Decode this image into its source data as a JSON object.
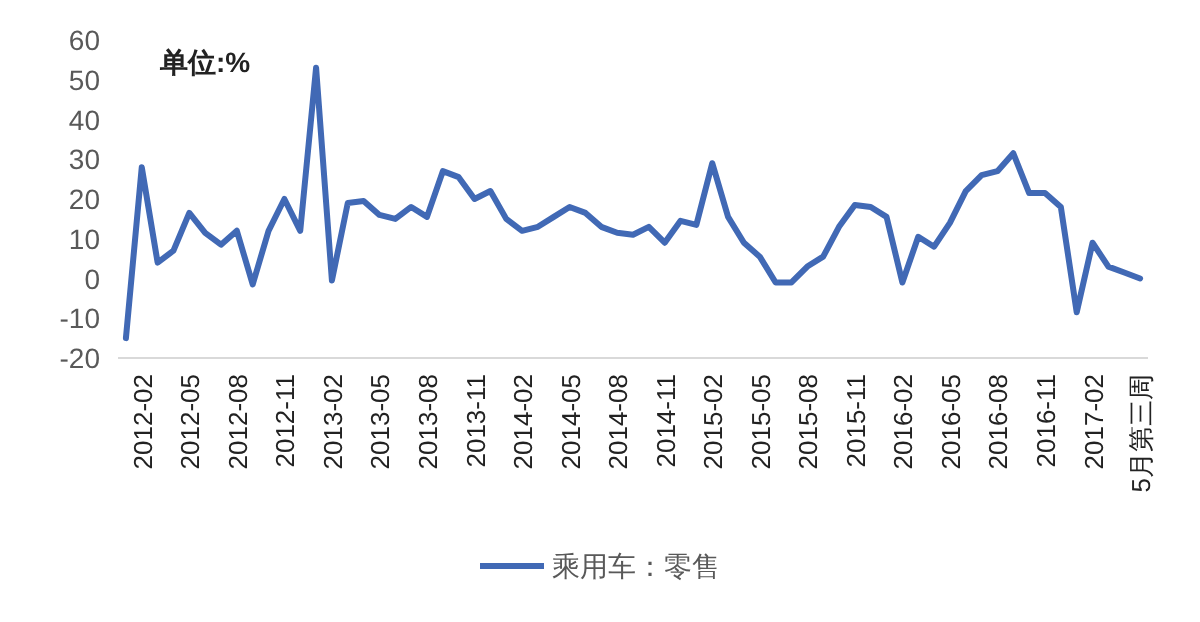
{
  "chart_data": {
    "type": "line",
    "ylabel": "单位:%",
    "categories": [
      null,
      "2012-02",
      null,
      null,
      "2012-05",
      null,
      null,
      "2012-08",
      null,
      null,
      "2012-11",
      null,
      null,
      "2013-02",
      null,
      null,
      "2013-05",
      null,
      null,
      "2013-08",
      null,
      null,
      "2013-11",
      null,
      null,
      "2014-02",
      null,
      null,
      "2014-05",
      null,
      null,
      "2014-08",
      null,
      null,
      "2014-11",
      null,
      null,
      "2015-02",
      null,
      null,
      "2015-05",
      null,
      null,
      "2015-08",
      null,
      null,
      "2015-11",
      null,
      null,
      "2016-02",
      null,
      null,
      "2016-05",
      null,
      null,
      "2016-08",
      null,
      null,
      "2016-11",
      null,
      null,
      "2017-02",
      null,
      null,
      "5月第三周"
    ],
    "series": [
      {
        "name": "乘用车：零售",
        "color": "#4169b5",
        "values": [
          -15,
          28,
          4,
          7,
          16.5,
          11.5,
          8.5,
          12,
          -1.5,
          12,
          20,
          12,
          53,
          -0.5,
          19,
          19.5,
          16,
          15,
          18,
          15.5,
          27,
          25.5,
          20,
          22,
          15,
          12,
          13,
          15.5,
          18,
          16.5,
          13,
          11.5,
          11,
          13,
          9,
          14.5,
          13.5,
          29,
          15.5,
          9,
          5.5,
          -1,
          -1,
          3,
          5.5,
          13,
          18.5,
          18,
          15.5,
          -1,
          10.5,
          8,
          14,
          22,
          26,
          27,
          31.5,
          21.5,
          21.5,
          18,
          -8.5,
          9,
          3,
          1.5,
          0
        ]
      }
    ],
    "ylim": [
      -20,
      60
    ],
    "yticks": [
      -20,
      -10,
      0,
      10,
      20,
      30,
      40,
      50,
      60
    ],
    "grid": false,
    "legend": "bottom",
    "marker": "none",
    "line_style": "solid"
  }
}
